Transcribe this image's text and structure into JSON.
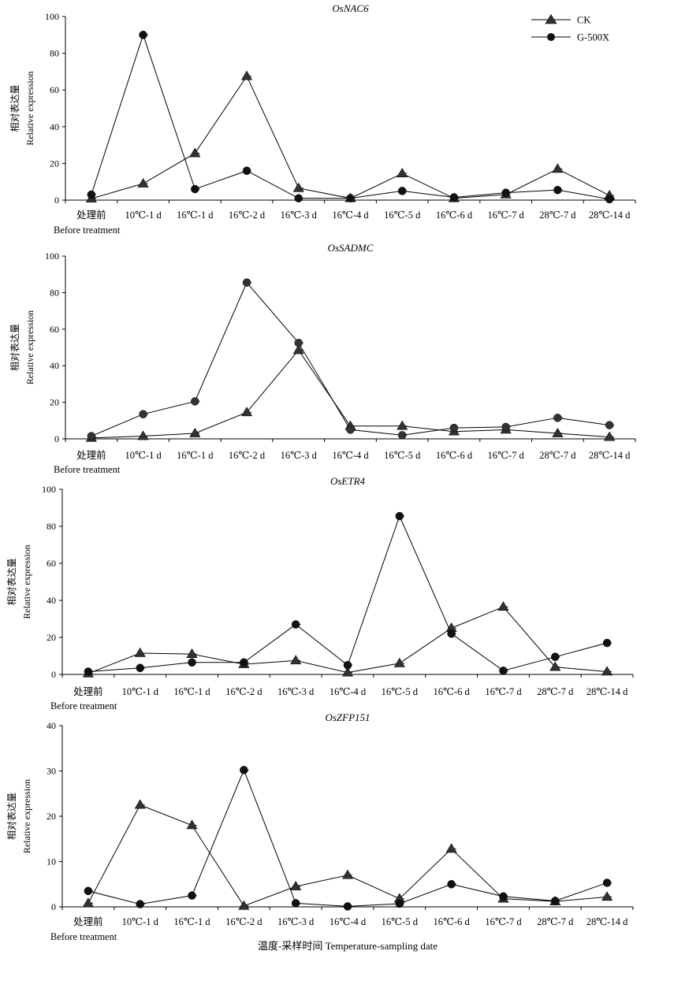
{
  "legend": {
    "ck_label": "CK",
    "g500x_label": "G-500X"
  },
  "x_axis_title": "温度-采样时间 Temperature-sampling date",
  "before_treatment_label": "Before treatment",
  "y_label_cn": "相对表达量",
  "y_label_en": "Relative expression",
  "categories": [
    "处理前",
    "10℃-1 d",
    "16℃-1 d",
    "16℃-2 d",
    "16℃-3 d",
    "16℃-4 d",
    "16℃-5 d",
    "16℃-6 d",
    "16℃-7 d",
    "28℃-7 d",
    "28℃-14 d"
  ],
  "chart_data": [
    {
      "type": "line",
      "title": "OsNAC6",
      "ylim": [
        0,
        100
      ],
      "yticks": [
        0,
        20,
        40,
        60,
        80,
        100
      ],
      "series": [
        {
          "name": "CK",
          "marker": "triangle",
          "values": [
            0.8,
            9,
            25.5,
            67.5,
            6.5,
            1,
            14.5,
            1,
            3,
            17,
            2.5
          ]
        },
        {
          "name": "G-500X",
          "marker": "circle",
          "values": [
            3,
            90,
            6,
            16,
            1,
            1,
            5,
            1.5,
            4,
            5.5,
            0.5
          ]
        }
      ]
    },
    {
      "type": "line",
      "title": "OsSADMC",
      "ylim": [
        0,
        100
      ],
      "yticks": [
        0,
        20,
        40,
        60,
        80,
        100
      ],
      "series": [
        {
          "name": "CK",
          "marker": "triangle",
          "values": [
            0.5,
            1.5,
            3,
            14.5,
            48.5,
            7,
            7,
            4,
            5,
            3,
            1
          ]
        },
        {
          "name": "G-500X",
          "marker": "circle",
          "values": [
            1.5,
            13.5,
            20.5,
            85.5,
            52.5,
            5,
            2,
            6,
            6.5,
            11.5,
            7.5
          ]
        }
      ]
    },
    {
      "type": "line",
      "title": "OsETR4",
      "ylim": [
        0,
        100
      ],
      "yticks": [
        0,
        20,
        40,
        60,
        80,
        100
      ],
      "series": [
        {
          "name": "CK",
          "marker": "triangle",
          "values": [
            0.5,
            11.5,
            11,
            5.5,
            7.5,
            1,
            6,
            25,
            36.5,
            4,
            1.5
          ]
        },
        {
          "name": "G-500X",
          "marker": "circle",
          "values": [
            1.5,
            3.5,
            6.5,
            6.5,
            27,
            5,
            85.5,
            22,
            2,
            9.5,
            17
          ]
        }
      ]
    },
    {
      "type": "line",
      "title": "OsZFP151",
      "ylim": [
        0,
        40
      ],
      "yticks": [
        0,
        10,
        20,
        30,
        40
      ],
      "series": [
        {
          "name": "CK",
          "marker": "triangle",
          "values": [
            0.8,
            22.5,
            18,
            0.2,
            4.5,
            7,
            1.8,
            12.8,
            1.8,
            1.2,
            2.2
          ]
        },
        {
          "name": "G-500X",
          "marker": "circle",
          "values": [
            3.5,
            0.6,
            2.5,
            30.2,
            0.8,
            0.1,
            0.7,
            5,
            2.3,
            1.3,
            5.3
          ]
        }
      ]
    }
  ]
}
